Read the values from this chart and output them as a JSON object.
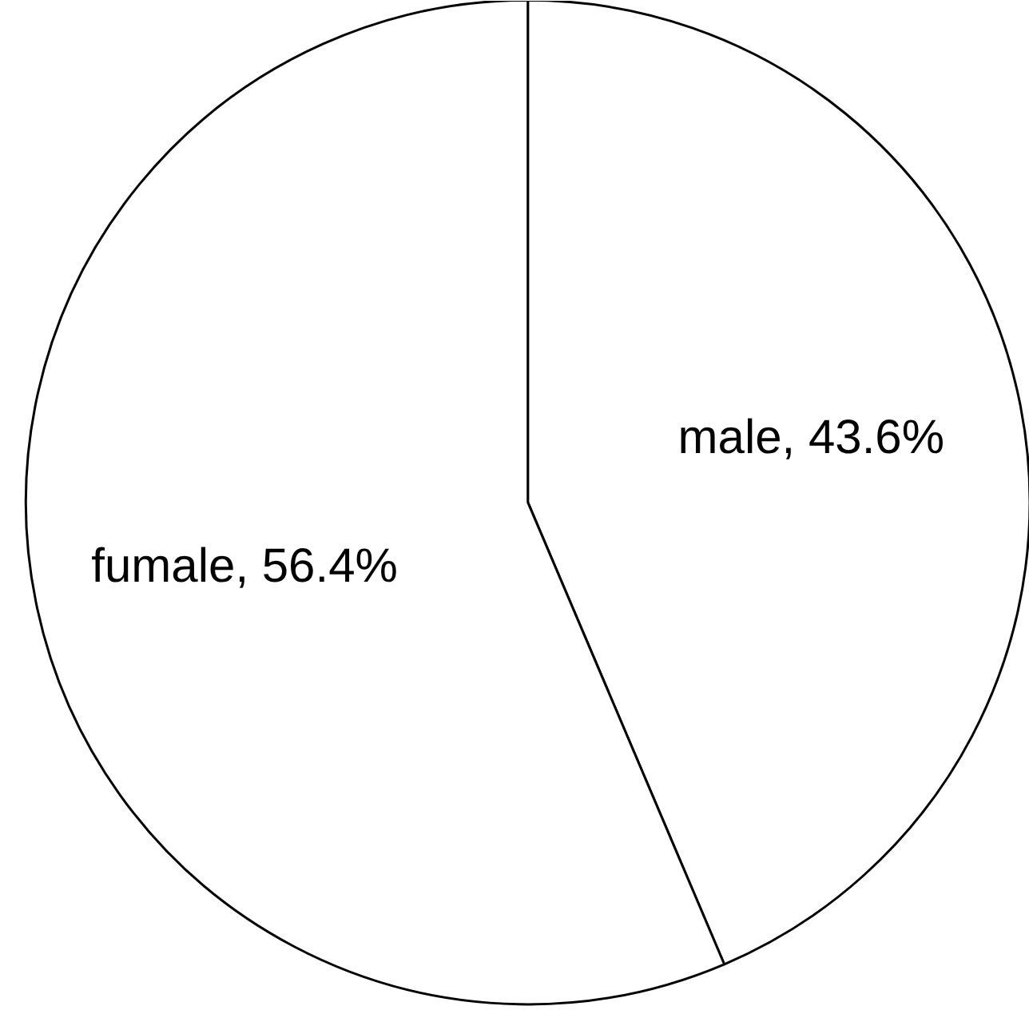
{
  "chart_data": {
    "type": "pie",
    "categories": [
      "male",
      "fumale"
    ],
    "values": [
      43.6,
      56.4
    ],
    "colors": [
      "#ffffff",
      "#ffffff"
    ],
    "value_labels": [
      "43.6%",
      "56.4%"
    ]
  }
}
